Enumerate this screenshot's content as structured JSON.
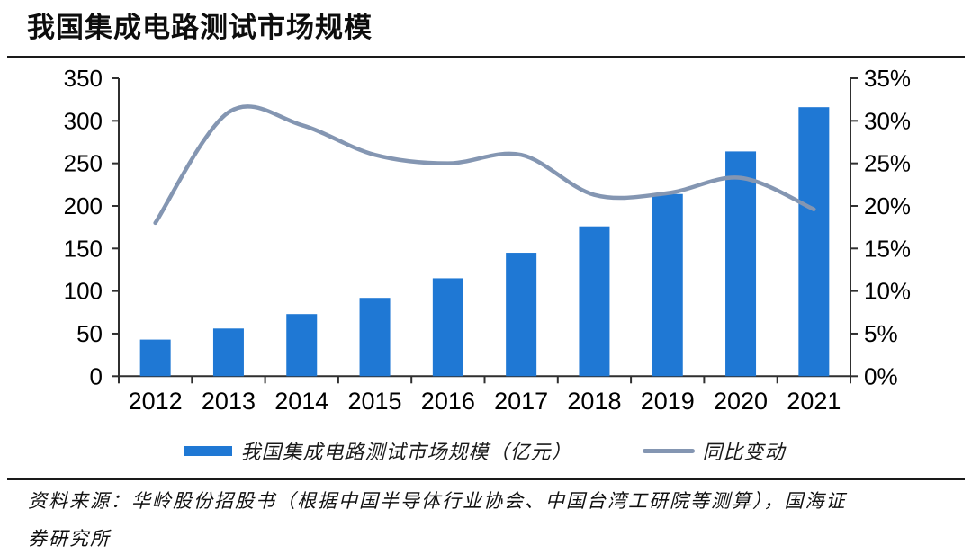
{
  "header": {
    "title": "我国集成电路测试市场规模"
  },
  "legend": {
    "bar_label": "我国集成电路测试市场规模（亿元）",
    "line_label": "同比变动"
  },
  "source": {
    "line1": "资料来源：华岭股份招股书（根据中国半导体行业协会、中国台湾工研院等测算），国海证",
    "line2": "券研究所"
  },
  "colors": {
    "bar": "#1F78D4",
    "line": "#8496B2",
    "axis": "#2F2F2F",
    "text": "#000000",
    "rule": "#1a1a1a"
  },
  "chart_data": {
    "type": "bar",
    "subtype": "bar-line-combo",
    "title": "我国集成电路测试市场规模",
    "categories": [
      "2012",
      "2013",
      "2014",
      "2015",
      "2016",
      "2017",
      "2018",
      "2019",
      "2020",
      "2021"
    ],
    "series": [
      {
        "name": "我国集成电路测试市场规模（亿元）",
        "type": "bar",
        "axis": "left",
        "color": "#1F78D4",
        "values": [
          43,
          56,
          73,
          92,
          115,
          145,
          176,
          214,
          264,
          316
        ]
      },
      {
        "name": "同比变动",
        "type": "line",
        "axis": "right",
        "color": "#8496B2",
        "values": [
          18.0,
          31.0,
          29.5,
          26.0,
          25.0,
          26.0,
          21.3,
          21.5,
          23.3,
          19.6
        ]
      }
    ],
    "left_axis": {
      "min": 0,
      "max": 350,
      "tick_step": 50,
      "ticks_top_to_bottom": [
        "350",
        "300",
        "250",
        "200",
        "150",
        "100",
        "50",
        "0"
      ]
    },
    "right_axis": {
      "min": 0,
      "max": 35,
      "tick_step": 5,
      "ticks_top_to_bottom": [
        "35%",
        "30%",
        "25%",
        "20%",
        "15%",
        "10%",
        "5%",
        "0%"
      ]
    },
    "grid": false,
    "legend_position": "bottom",
    "line_smoothing": true
  }
}
